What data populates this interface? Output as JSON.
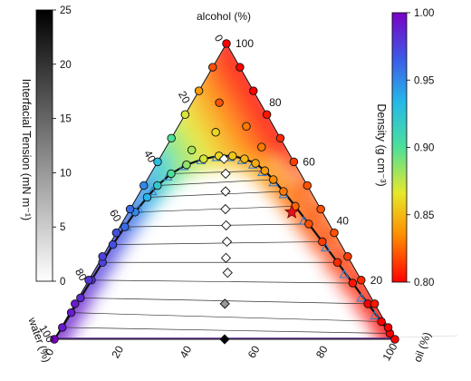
{
  "chart_data": {
    "type": "scatter",
    "subtype": "ternary phase diagram",
    "title": "",
    "axes": {
      "top": {
        "label": "alcohol (%)",
        "ticks": [
          "100",
          "80",
          "60",
          "40",
          "20"
        ]
      },
      "left": {
        "label": "water (%)",
        "ticks": [
          "0",
          "20",
          "40",
          "60",
          "80",
          "100"
        ]
      },
      "bottom": {
        "label": "oil (%)",
        "ticks": [
          "0",
          "20",
          "40",
          "60",
          "80",
          "100"
        ]
      }
    },
    "colorbars": [
      {
        "name": "interfacial_tension",
        "label": "Interfacial Tension (mN m⁻¹)",
        "colormap": "greys",
        "range": [
          0,
          25
        ],
        "ticks": [
          "25",
          "20",
          "15",
          "10",
          "5",
          "0"
        ]
      },
      {
        "name": "density",
        "label": "Density (g cm⁻³)",
        "colormap": "rainbow",
        "range": [
          0.8,
          1.0
        ],
        "ticks": [
          "1.00",
          "0.95",
          "0.90",
          "0.85",
          "0.80"
        ]
      }
    ],
    "binodal_points": [
      {
        "alcohol": 0.0,
        "oil": 0.0,
        "density": 1.0
      },
      {
        "alcohol": 4.0,
        "oil": 0.3,
        "density": 0.99
      },
      {
        "alcohol": 9.0,
        "oil": 0.4,
        "density": 0.99
      },
      {
        "alcohol": 14.0,
        "oil": 0.6,
        "density": 0.985
      },
      {
        "alcohol": 20.0,
        "oil": 0.8,
        "density": 0.98
      },
      {
        "alcohol": 26.0,
        "oil": 1.0,
        "density": 0.975
      },
      {
        "alcohol": 32.0,
        "oil": 1.0,
        "density": 0.97
      },
      {
        "alcohol": 38.0,
        "oil": 1.5,
        "density": 0.96
      },
      {
        "alcohol": 43.0,
        "oil": 2.0,
        "density": 0.95
      },
      {
        "alcohol": 48.0,
        "oil": 3.0,
        "density": 0.935
      },
      {
        "alcohol": 52.0,
        "oil": 4.0,
        "density": 0.92
      },
      {
        "alcohol": 56.0,
        "oil": 6.0,
        "density": 0.9
      },
      {
        "alcohol": 59.0,
        "oil": 9.0,
        "density": 0.885
      },
      {
        "alcohol": 61.0,
        "oil": 13.0,
        "density": 0.87
      },
      {
        "alcohol": 62.0,
        "oil": 17.0,
        "density": 0.86
      },
      {
        "alcohol": 62.0,
        "oil": 21.0,
        "density": 0.855
      },
      {
        "alcohol": 61.0,
        "oil": 25.0,
        "density": 0.85
      },
      {
        "alcohol": 59.5,
        "oil": 29.0,
        "density": 0.845
      },
      {
        "alcohol": 57.0,
        "oil": 33.0,
        "density": 0.84
      },
      {
        "alcohol": 54.0,
        "oil": 37.0,
        "density": 0.835
      },
      {
        "alcohol": 50.0,
        "oil": 42.0,
        "density": 0.83
      },
      {
        "alcohol": 45.0,
        "oil": 48.0,
        "density": 0.825
      },
      {
        "alcohol": 39.0,
        "oil": 55.0,
        "density": 0.82
      },
      {
        "alcohol": 33.0,
        "oil": 62.0,
        "density": 0.815
      },
      {
        "alcohol": 26.0,
        "oil": 70.0,
        "density": 0.81
      },
      {
        "alcohol": 19.0,
        "oil": 78.0,
        "density": 0.805
      },
      {
        "alcohol": 12.0,
        "oil": 86.0,
        "density": 0.8
      },
      {
        "alcohol": 6.0,
        "oil": 93.0,
        "density": 0.8
      },
      {
        "alcohol": 2.0,
        "oil": 97.5,
        "density": 0.8
      },
      {
        "alcohol": 0.0,
        "oil": 100.0,
        "density": 0.8
      }
    ],
    "boundary_points": [
      {
        "alcohol": 100,
        "oil": 0,
        "density": 0.8
      },
      {
        "alcohol": 92,
        "oil": 0,
        "density": 0.82
      },
      {
        "alcohol": 84,
        "oil": 0,
        "density": 0.84
      },
      {
        "alcohol": 76,
        "oil": 0,
        "density": 0.87
      },
      {
        "alcohol": 68,
        "oil": 0,
        "density": 0.9
      },
      {
        "alcohol": 60,
        "oil": 0,
        "density": 0.93
      },
      {
        "alcohol": 52,
        "oil": 0,
        "density": 0.95
      },
      {
        "alcohol": 44,
        "oil": 0,
        "density": 0.96
      },
      {
        "alcohol": 36,
        "oil": 0,
        "density": 0.97
      },
      {
        "alcohol": 28,
        "oil": 0,
        "density": 0.975
      },
      {
        "alcohol": 20,
        "oil": 0,
        "density": 0.98
      },
      {
        "alcohol": 12,
        "oil": 0,
        "density": 0.99
      },
      {
        "alcohol": 92,
        "oil": 8,
        "density": 0.8
      },
      {
        "alcohol": 84,
        "oil": 16,
        "density": 0.8
      },
      {
        "alcohol": 76,
        "oil": 24,
        "density": 0.805
      },
      {
        "alcohol": 68,
        "oil": 32,
        "density": 0.81
      },
      {
        "alcohol": 60,
        "oil": 40,
        "density": 0.815
      },
      {
        "alcohol": 52,
        "oil": 48,
        "density": 0.82
      },
      {
        "alcohol": 44,
        "oil": 56,
        "density": 0.82
      },
      {
        "alcohol": 36,
        "oil": 64,
        "density": 0.82
      },
      {
        "alcohol": 28,
        "oil": 72,
        "density": 0.815
      },
      {
        "alcohol": 20,
        "oil": 80,
        "density": 0.81
      },
      {
        "alcohol": 12,
        "oil": 88,
        "density": 0.805
      },
      {
        "alcohol": 4,
        "oil": 96,
        "density": 0.8
      }
    ],
    "interior_points": [
      {
        "alcohol": 80,
        "oil": 8,
        "density": 0.82
      },
      {
        "alcohol": 70,
        "oil": 12,
        "density": 0.86
      },
      {
        "alcohol": 64,
        "oil": 8,
        "density": 0.88
      },
      {
        "alcohol": 72,
        "oil": 20,
        "density": 0.83
      },
      {
        "alcohol": 65,
        "oil": 28,
        "density": 0.83
      }
    ],
    "tie_lines": [
      {
        "water_rich": {
          "alcohol": 0.0,
          "oil": 0.0
        },
        "oil_rich": {
          "alcohol": 0.0,
          "oil": 100.0
        },
        "interfacial_tension": 25
      },
      {
        "water_rich": {
          "alcohol": 4.0,
          "oil": 0.3
        },
        "oil_rich": {
          "alcohol": 2.0,
          "oil": 97.5
        },
        "interfacial_tension": 22
      },
      {
        "water_rich": {
          "alcohol": 9.0,
          "oil": 0.4
        },
        "oil_rich": {
          "alcohol": 6.0,
          "oil": 93.0
        },
        "interfacial_tension": 18
      },
      {
        "water_rich": {
          "alcohol": 14.0,
          "oil": 0.6
        },
        "oil_rich": {
          "alcohol": 12.0,
          "oil": 86.0
        },
        "interfacial_tension": 14
      },
      {
        "water_rich": {
          "alcohol": 20.0,
          "oil": 0.8
        },
        "oil_rich": {
          "alcohol": 19.0,
          "oil": 78.0
        },
        "interfacial_tension": 10
      },
      {
        "water_rich": {
          "alcohol": 26.0,
          "oil": 1.0
        },
        "oil_rich": {
          "alcohol": 26.0,
          "oil": 70.0
        },
        "interfacial_tension": 7
      },
      {
        "water_rich": {
          "alcohol": 32.0,
          "oil": 1.0
        },
        "oil_rich": {
          "alcohol": 33.0,
          "oil": 62.0
        },
        "interfacial_tension": 5
      },
      {
        "water_rich": {
          "alcohol": 38.0,
          "oil": 1.5
        },
        "oil_rich": {
          "alcohol": 39.0,
          "oil": 55.0
        },
        "interfacial_tension": 3
      },
      {
        "water_rich": {
          "alcohol": 43.0,
          "oil": 2.0
        },
        "oil_rich": {
          "alcohol": 45.0,
          "oil": 48.0
        },
        "interfacial_tension": 2
      },
      {
        "water_rich": {
          "alcohol": 48.0,
          "oil": 3.0
        },
        "oil_rich": {
          "alcohol": 50.0,
          "oil": 42.0
        },
        "interfacial_tension": 1
      },
      {
        "water_rich": {
          "alcohol": 52.0,
          "oil": 4.0
        },
        "oil_rich": {
          "alcohol": 54.0,
          "oil": 37.0
        },
        "interfacial_tension": 0.5
      },
      {
        "water_rich": {
          "alcohol": 56.0,
          "oil": 6.0
        },
        "oil_rich": {
          "alcohol": 57.0,
          "oil": 33.0
        },
        "interfacial_tension": 0.2
      }
    ],
    "tie_line_midpoints": [
      {
        "alcohol": 0,
        "oil": 50,
        "interfacial_tension": 25
      },
      {
        "alcohol": 12,
        "oil": 44,
        "interfacial_tension": 10
      },
      {
        "alcohol": 22.5,
        "oil": 39.5,
        "interfacial_tension": 1
      },
      {
        "alcohol": 27.5,
        "oil": 36.5,
        "interfacial_tension": 0.5
      },
      {
        "alcohol": 33,
        "oil": 34,
        "interfacial_tension": 0.3
      },
      {
        "alcohol": 38.5,
        "oil": 31,
        "interfacial_tension": 0.2
      },
      {
        "alcohol": 44,
        "oil": 28,
        "interfacial_tension": 0.15
      },
      {
        "alcohol": 50,
        "oil": 25,
        "interfacial_tension": 0.1
      },
      {
        "alcohol": 56,
        "oil": 22,
        "interfacial_tension": 0.05
      },
      {
        "alcohol": 61,
        "oil": 19,
        "interfacial_tension": 0.0
      }
    ],
    "critical_point": {
      "alcohol": 43,
      "oil": 48,
      "density": 0.825
    },
    "dft_binodal_points": [
      {
        "alcohol": 38,
        "oil": 2
      },
      {
        "alcohol": 44,
        "oil": 2.5
      },
      {
        "alcohol": 50,
        "oil": 3.5
      },
      {
        "alcohol": 55,
        "oil": 5.5
      },
      {
        "alcohol": 58.5,
        "oil": 8.5
      },
      {
        "alcohol": 60.5,
        "oil": 12.5
      },
      {
        "alcohol": 61.5,
        "oil": 16.5
      },
      {
        "alcohol": 61.5,
        "oil": 20.5
      },
      {
        "alcohol": 60.5,
        "oil": 24.5
      },
      {
        "alcohol": 59,
        "oil": 28.5
      },
      {
        "alcohol": 56.5,
        "oil": 32.5
      },
      {
        "alcohol": 53,
        "oil": 37.5
      },
      {
        "alcohol": 49,
        "oil": 42.5
      },
      {
        "alcohol": 40,
        "oil": 53
      },
      {
        "alcohol": 31,
        "oil": 64
      },
      {
        "alcohol": 22,
        "oil": 74
      },
      {
        "alcohol": 14,
        "oil": 83
      },
      {
        "alcohol": 8,
        "oil": 90
      }
    ]
  }
}
